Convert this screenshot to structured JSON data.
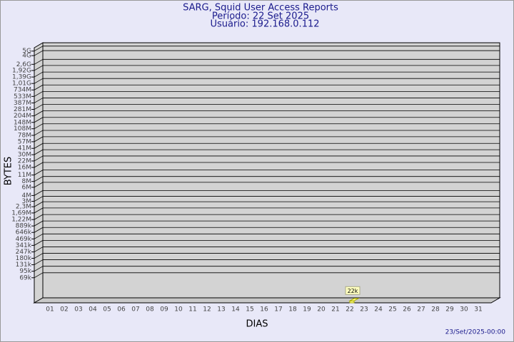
{
  "chart_data": {
    "type": "bar",
    "title": "SARG, Squid User Access Reports",
    "subtitle": "Período: 22 Set 2025",
    "user": "Usuário: 192.168.0.112",
    "x_label": "DIAS",
    "y_label": "BYTES",
    "footer": "23/Set/2025-00:00",
    "log_scale": true,
    "grid": true,
    "color": "#ffff80",
    "ylim": [
      20000,
      5900000000
    ],
    "yticks": [
      {
        "value": 5000000000,
        "label": "5G"
      },
      {
        "value": 4000000000,
        "label": "4G"
      },
      {
        "value": 2600000000,
        "label": "2,6G"
      },
      {
        "value": 1920000000,
        "label": "1,92G"
      },
      {
        "value": 1390000000,
        "label": "1,39G"
      },
      {
        "value": 1010000000,
        "label": "1,01G"
      },
      {
        "value": 734000000,
        "label": "734M"
      },
      {
        "value": 533000000,
        "label": "533M"
      },
      {
        "value": 387000000,
        "label": "387M"
      },
      {
        "value": 281000000,
        "label": "281M"
      },
      {
        "value": 204000000,
        "label": "204M"
      },
      {
        "value": 148000000,
        "label": "148M"
      },
      {
        "value": 108000000,
        "label": "108M"
      },
      {
        "value": 78000000,
        "label": "78M"
      },
      {
        "value": 57000000,
        "label": "57M"
      },
      {
        "value": 41000000,
        "label": "41M"
      },
      {
        "value": 30000000,
        "label": "30M"
      },
      {
        "value": 22000000,
        "label": "22M"
      },
      {
        "value": 16000000,
        "label": "16M"
      },
      {
        "value": 11000000,
        "label": "11M"
      },
      {
        "value": 8000000,
        "label": "8M"
      },
      {
        "value": 6000000,
        "label": "6M"
      },
      {
        "value": 4000000,
        "label": "4M"
      },
      {
        "value": 3000000,
        "label": "3M"
      },
      {
        "value": 2300000,
        "label": "2,3M"
      },
      {
        "value": 1690000,
        "label": "1,69M"
      },
      {
        "value": 1220000,
        "label": "1,22M"
      },
      {
        "value": 889000,
        "label": "889k"
      },
      {
        "value": 646000,
        "label": "646k"
      },
      {
        "value": 469000,
        "label": "469k"
      },
      {
        "value": 341000,
        "label": "341k"
      },
      {
        "value": 247000,
        "label": "247k"
      },
      {
        "value": 180000,
        "label": "180k"
      },
      {
        "value": 131000,
        "label": "131k"
      },
      {
        "value": 95000,
        "label": "95k"
      },
      {
        "value": 69000,
        "label": "69k"
      }
    ],
    "categories": [
      "01",
      "02",
      "03",
      "04",
      "05",
      "06",
      "07",
      "08",
      "09",
      "10",
      "11",
      "12",
      "13",
      "14",
      "15",
      "16",
      "17",
      "18",
      "19",
      "20",
      "21",
      "22",
      "23",
      "24",
      "25",
      "26",
      "27",
      "28",
      "29",
      "30",
      "31"
    ],
    "values": [
      null,
      null,
      null,
      null,
      null,
      null,
      null,
      null,
      null,
      null,
      null,
      null,
      null,
      null,
      null,
      null,
      null,
      null,
      null,
      null,
      null,
      22000,
      null,
      null,
      null,
      null,
      null,
      null,
      null,
      null,
      null
    ],
    "value_labels": [
      null,
      null,
      null,
      null,
      null,
      null,
      null,
      null,
      null,
      null,
      null,
      null,
      null,
      null,
      null,
      null,
      null,
      null,
      null,
      null,
      null,
      "22k",
      null,
      null,
      null,
      null,
      null,
      null,
      null,
      null,
      null
    ]
  }
}
